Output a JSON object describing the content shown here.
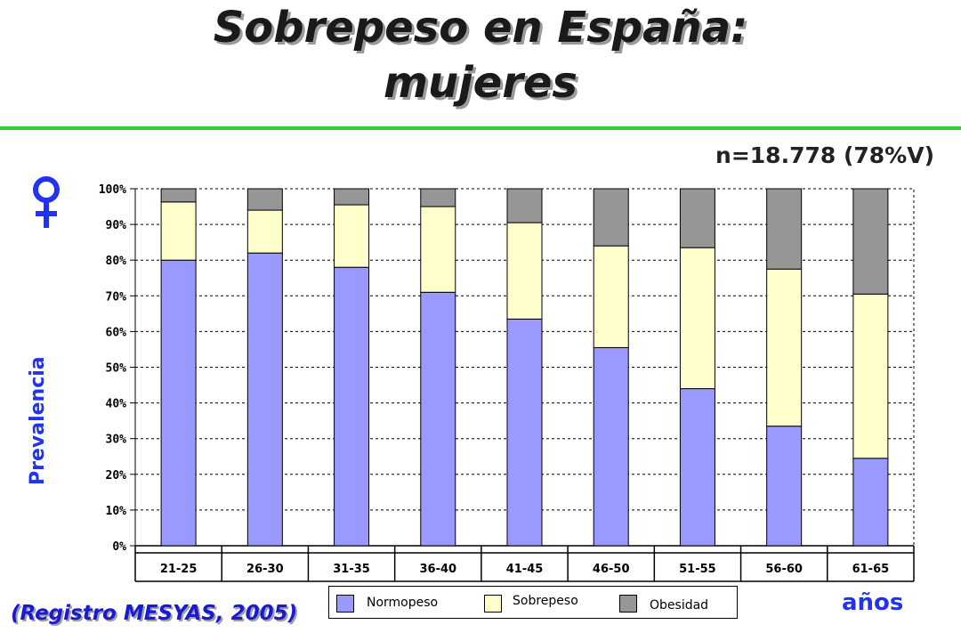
{
  "title_line1": "Sobrepeso en España:",
  "title_line2": "mujeres",
  "sample_note": "n=18.778 (78%V)",
  "source_note": "(Registro MESYAS, 2005)",
  "symbol": "female-symbol-icon",
  "colors": {
    "normopeso": "#9999ff",
    "sobrepeso": "#ffffcc",
    "obesidad": "#969696",
    "accent_rule": "#33cc33",
    "axis_label": "#2233ee",
    "source": "#1a1ad0",
    "venus": "#2233ee"
  },
  "chart_data": {
    "type": "bar",
    "stacked": true,
    "categories": [
      "21-25",
      "26-30",
      "31-35",
      "36-40",
      "41-45",
      "46-50",
      "51-55",
      "56-60",
      "61-65"
    ],
    "series": [
      {
        "name": "Normopeso",
        "values": [
          80,
          82,
          78,
          71,
          63.5,
          55.5,
          44,
          33.5,
          24.5
        ]
      },
      {
        "name": "Sobrepeso",
        "values": [
          16.3,
          12,
          17.5,
          24,
          27,
          28.5,
          39.5,
          44,
          46
        ]
      },
      {
        "name": "Obesidad",
        "values": [
          3.7,
          6,
          4.5,
          5,
          9.5,
          16,
          16.5,
          22.5,
          29.5
        ]
      }
    ],
    "ylabel": "Prevalencia",
    "xlabel": "años",
    "ylim": [
      0,
      100
    ],
    "yticks": [
      "0%",
      "10%",
      "20%",
      "30%",
      "40%",
      "50%",
      "60%",
      "70%",
      "80%",
      "90%",
      "100%"
    ],
    "grid": true,
    "legend": "bottom"
  }
}
